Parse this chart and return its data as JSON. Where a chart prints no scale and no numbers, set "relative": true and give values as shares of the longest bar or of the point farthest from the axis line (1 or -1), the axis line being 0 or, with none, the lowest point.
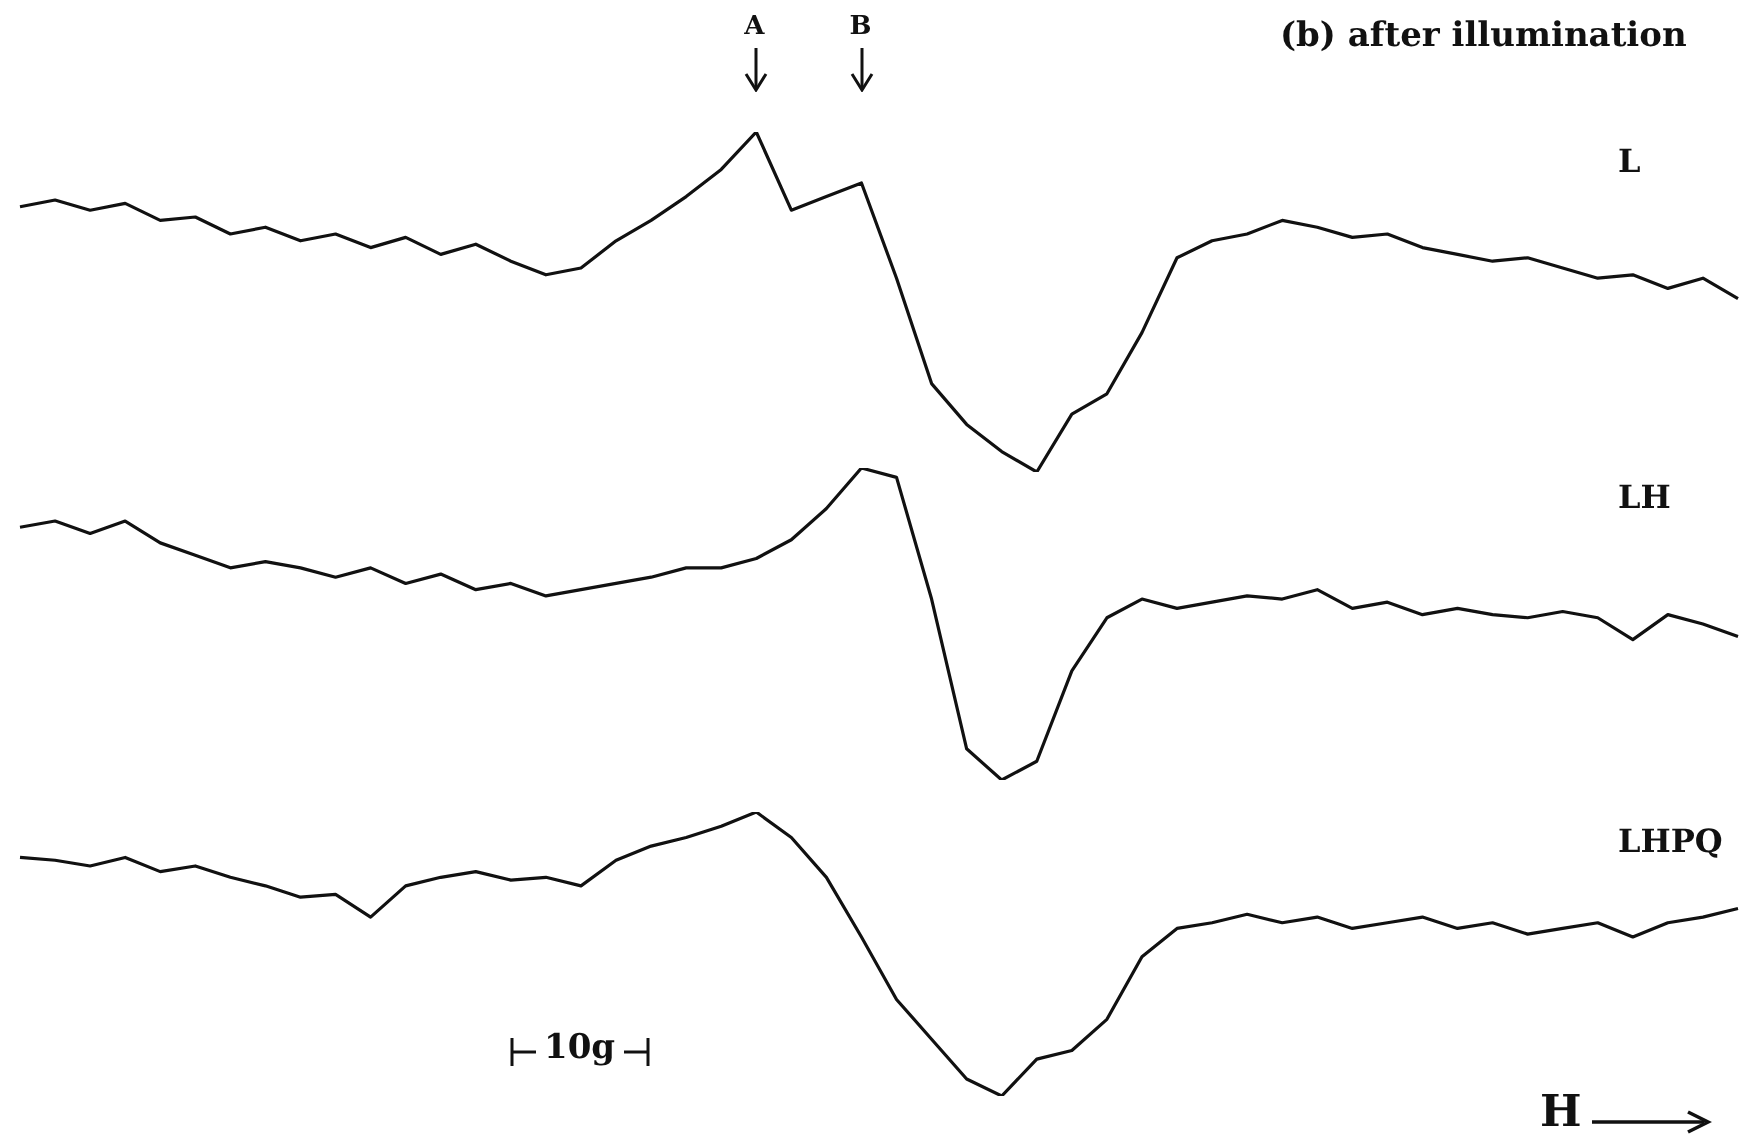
{
  "chart_data": [
    {
      "type": "line",
      "relative": true,
      "title": "(b) after illumination",
      "annotations": [
        "A",
        "B"
      ],
      "legend": false,
      "categories": [
        null,
        null,
        null,
        null,
        null,
        null,
        null,
        null,
        null,
        null,
        null,
        null,
        null,
        null,
        null,
        null,
        null,
        null,
        null,
        null,
        null,
        null,
        null,
        null,
        null,
        null,
        null,
        null,
        null,
        null,
        null,
        null,
        null,
        null,
        null,
        null,
        null,
        null,
        null,
        null,
        null,
        null,
        null,
        null,
        null,
        null,
        null,
        null,
        null,
        null
      ],
      "series": [
        {
          "name": "L",
          "color": "#111111",
          "values": [
            0.78,
            0.8,
            0.77,
            0.79,
            0.74,
            0.75,
            0.7,
            0.72,
            0.68,
            0.7,
            0.66,
            0.69,
            0.64,
            0.67,
            0.62,
            0.58,
            0.6,
            0.68,
            0.74,
            0.81,
            0.89,
            1,
            0.77,
            0.81,
            0.85,
            0.57,
            0.26,
            0.14,
            0.06,
            0,
            0.17,
            0.23,
            0.41,
            0.63,
            0.68,
            0.7,
            0.74,
            0.72,
            0.69,
            0.7,
            0.66,
            0.64,
            0.62,
            0.63,
            0.6,
            0.57,
            0.58,
            0.54,
            0.57,
            0.51
          ]
        }
      ]
    },
    {
      "type": "line",
      "relative": true,
      "legend": false,
      "categories": [
        null,
        null,
        null,
        null,
        null,
        null,
        null,
        null,
        null,
        null,
        null,
        null,
        null,
        null,
        null,
        null,
        null,
        null,
        null,
        null,
        null,
        null,
        null,
        null,
        null,
        null,
        null,
        null,
        null,
        null,
        null,
        null,
        null,
        null,
        null,
        null,
        null,
        null,
        null,
        null,
        null,
        null,
        null,
        null,
        null,
        null,
        null,
        null,
        null,
        null
      ],
      "series": [
        {
          "name": "LH",
          "color": "#111111",
          "values": [
            0.81,
            0.83,
            0.79,
            0.83,
            0.76,
            0.72,
            0.68,
            0.7,
            0.68,
            0.65,
            0.68,
            0.63,
            0.66,
            0.61,
            0.63,
            0.59,
            0.61,
            0.63,
            0.65,
            0.68,
            0.68,
            0.71,
            0.77,
            0.87,
            1,
            0.97,
            0.58,
            0.1,
            0,
            0.06,
            0.35,
            0.52,
            0.58,
            0.55,
            0.57,
            0.59,
            0.58,
            0.61,
            0.55,
            0.57,
            0.53,
            0.55,
            0.53,
            0.52,
            0.54,
            0.52,
            0.45,
            0.53,
            0.5,
            0.46
          ]
        }
      ]
    },
    {
      "type": "line",
      "relative": true,
      "annotations": [
        "10g",
        "H"
      ],
      "legend": false,
      "categories": [
        null,
        null,
        null,
        null,
        null,
        null,
        null,
        null,
        null,
        null,
        null,
        null,
        null,
        null,
        null,
        null,
        null,
        null,
        null,
        null,
        null,
        null,
        null,
        null,
        null,
        null,
        null,
        null,
        null,
        null,
        null,
        null,
        null,
        null,
        null,
        null,
        null,
        null,
        null,
        null,
        null,
        null,
        null,
        null,
        null,
        null,
        null,
        null,
        null,
        null
      ],
      "series": [
        {
          "name": "LHPQ",
          "color": "#111111",
          "values": [
            0.84,
            0.83,
            0.81,
            0.84,
            0.79,
            0.81,
            0.77,
            0.74,
            0.7,
            0.71,
            0.63,
            0.74,
            0.77,
            0.79,
            0.76,
            0.77,
            0.74,
            0.83,
            0.88,
            0.91,
            0.95,
            1,
            0.91,
            0.77,
            0.56,
            0.34,
            0.2,
            0.06,
            0,
            0.13,
            0.16,
            0.27,
            0.49,
            0.59,
            0.61,
            0.64,
            0.61,
            0.63,
            0.59,
            0.61,
            0.63,
            0.59,
            0.61,
            0.57,
            0.59,
            0.61,
            0.56,
            0.61,
            0.63,
            0.66
          ]
        }
      ]
    }
  ]
}
